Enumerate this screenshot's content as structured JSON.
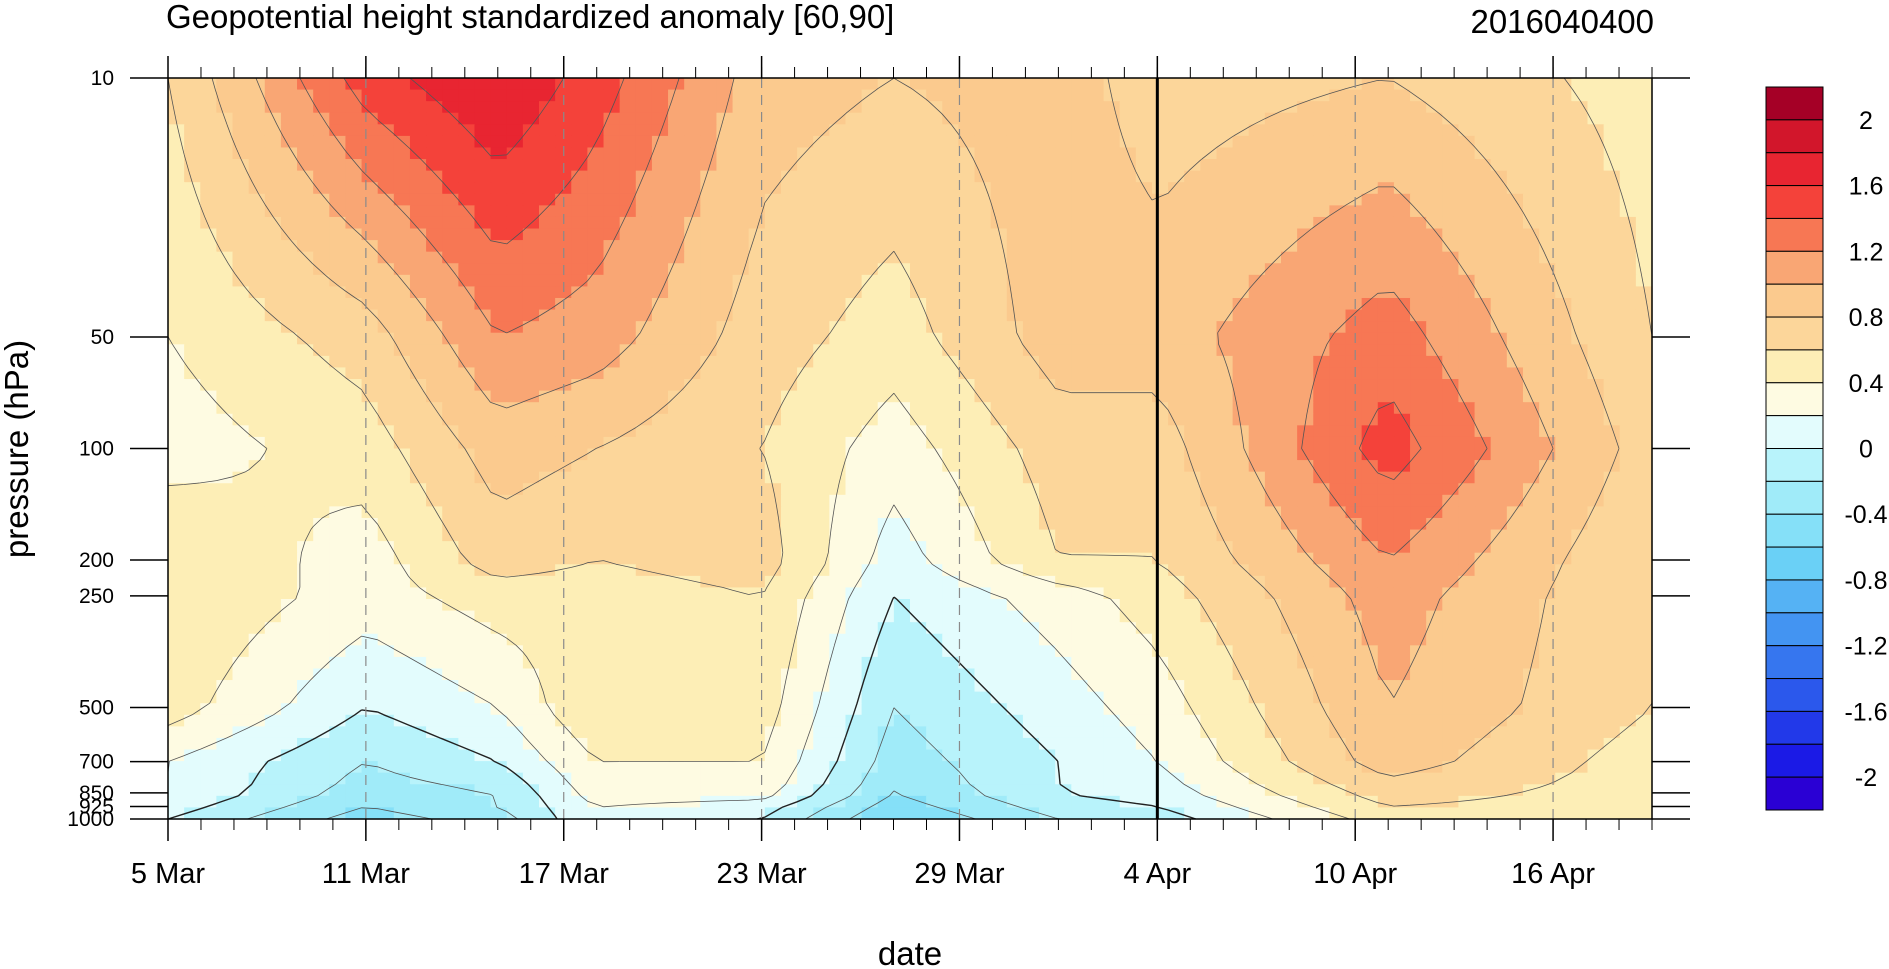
{
  "chart_data": {
    "type": "contour",
    "title": "Geopotential height standardized anomaly [60,90]",
    "date_label": "2016040400",
    "xlabel": "date",
    "ylabel": "pressure (hPa)",
    "x_ticks": [
      "5 Mar",
      "11 Mar",
      "17 Mar",
      "23 Mar",
      "29 Mar",
      "4 Apr",
      "10 Apr",
      "16 Apr"
    ],
    "x_range": [
      "2016-03-05",
      "2016-04-19"
    ],
    "y_scale": "log",
    "y_reversed": true,
    "y_ticks": [
      "10",
      "50",
      "100",
      "200",
      "250",
      "500",
      "700",
      "850",
      "925",
      "1000"
    ],
    "ylim": [
      1000,
      10
    ],
    "analysis_date_line": "2016-04-04",
    "contour_levels": [
      -2.2,
      -2.0,
      -1.8,
      -1.6,
      -1.4,
      -1.2,
      -1.0,
      -0.8,
      -0.6,
      -0.4,
      -0.2,
      0,
      0.2,
      0.4,
      0.6,
      0.8,
      1.0,
      1.2,
      1.4,
      1.6,
      1.8,
      2.0,
      2.2
    ],
    "colorbar": {
      "labels": [
        "2",
        "1.6",
        "1.2",
        "0.8",
        "0.4",
        "0",
        "-0.4",
        "-0.8",
        "-1.2",
        "-1.6",
        "-2"
      ],
      "colors": [
        "#a50026",
        "#d2162b",
        "#e82531",
        "#f4423a",
        "#f77754",
        "#f9a674",
        "#fbca8e",
        "#fcd69a",
        "#fdeeb6",
        "#fefbe2",
        "#e3fcfd",
        "#b8f3fb",
        "#a0ebf9",
        "#85e0f8",
        "#6ad0f6",
        "#55b2f4",
        "#4394f2",
        "#3676ef",
        "#2b58ec",
        "#2239e9",
        "#1b1ae6",
        "#2a00d4"
      ]
    },
    "field_anchors": [
      {
        "x": "2016-03-05",
        "values_by_level": {
          "1000": 0.0,
          "925": 0.1,
          "850": 0.2,
          "700": 0.2,
          "500": 0.5,
          "250": 0.6,
          "200": 0.6,
          "100": 0.3,
          "50": 0.4,
          "10": 0.6
        }
      },
      {
        "x": "2016-03-11",
        "values_by_level": {
          "1000": -0.5,
          "925": -0.4,
          "850": -0.3,
          "700": -0.2,
          "500": 0.0,
          "250": 0.3,
          "200": 0.3,
          "100": 0.5,
          "50": 0.7,
          "10": 1.5
        }
      },
      {
        "x": "2016-03-15",
        "values_by_level": {
          "1000": -0.3,
          "925": -0.2,
          "850": -0.2,
          "700": 0.0,
          "500": 0.2,
          "250": 0.5,
          "200": 0.7,
          "100": 0.9,
          "50": 1.2,
          "10": 1.8
        }
      },
      {
        "x": "2016-03-18",
        "values_by_level": {
          "1000": 0.2,
          "925": 0.2,
          "850": 0.3,
          "700": 0.4,
          "500": 0.6,
          "250": 0.5,
          "200": 0.6,
          "100": 0.8,
          "50": 1.1,
          "10": 1.5
        }
      },
      {
        "x": "2016-03-23",
        "values_by_level": {
          "1000": 0.0,
          "925": 0.1,
          "850": 0.3,
          "700": 0.4,
          "500": 0.5,
          "250": 0.6,
          "200": 0.7,
          "100": 0.6,
          "50": 0.7,
          "10": 0.9
        }
      },
      {
        "x": "2016-03-27",
        "values_by_level": {
          "1000": -0.6,
          "925": -0.5,
          "850": -0.4,
          "700": -0.3,
          "500": -0.2,
          "250": 0.0,
          "200": 0.1,
          "100": 0.3,
          "50": 0.5,
          "10": 0.8
        }
      },
      {
        "x": "2016-04-01",
        "values_by_level": {
          "1000": -0.2,
          "925": -0.1,
          "850": 0.0,
          "700": 0.0,
          "500": 0.1,
          "250": 0.3,
          "200": 0.6,
          "100": 0.7,
          "50": 0.9,
          "10": 0.9
        }
      },
      {
        "x": "2016-04-04",
        "values_by_level": {
          "1000": -0.1,
          "925": 0.0,
          "850": 0.1,
          "700": 0.2,
          "500": 0.3,
          "250": 0.5,
          "200": 0.6,
          "100": 0.7,
          "50": 0.9,
          "10": 0.7
        }
      },
      {
        "x": "2016-04-11",
        "values_by_level": {
          "1000": 0.5,
          "925": 0.6,
          "850": 0.7,
          "700": 0.9,
          "500": 1.0,
          "250": 1.1,
          "200": 1.2,
          "100": 1.5,
          "50": 1.3,
          "10": 0.8
        }
      },
      {
        "x": "2016-04-19",
        "values_by_level": {
          "1000": 0.5,
          "925": 0.5,
          "850": 0.5,
          "700": 0.5,
          "500": 0.6,
          "250": 0.6,
          "200": 0.6,
          "100": 0.7,
          "50": 0.6,
          "10": 0.5
        }
      }
    ]
  }
}
